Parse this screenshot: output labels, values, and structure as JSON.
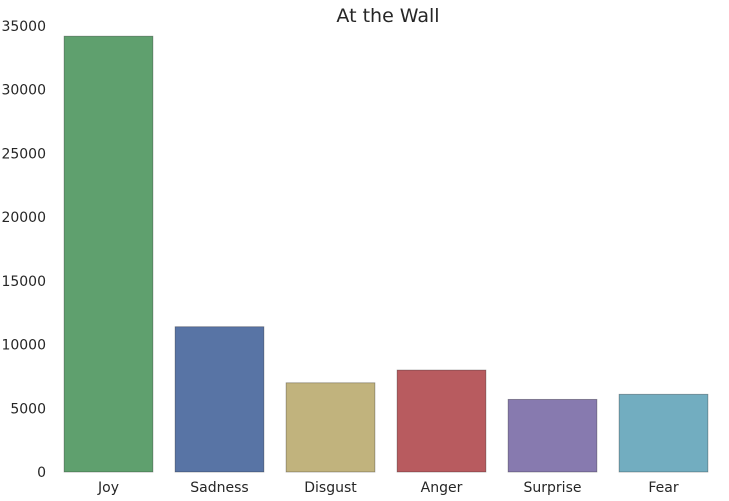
{
  "chart_data": {
    "type": "bar",
    "title": "At the Wall",
    "xlabel": "",
    "ylabel": "",
    "categories": [
      "Joy",
      "Sadness",
      "Disgust",
      "Anger",
      "Surprise",
      "Fear"
    ],
    "values": [
      34200,
      11400,
      7000,
      8000,
      5700,
      6100
    ],
    "colors": [
      "#5fa06e",
      "#5874a5",
      "#c1b37d",
      "#b85b5f",
      "#877aaf",
      "#72adc0"
    ],
    "ylim": [
      0,
      35000
    ],
    "yticks": [
      "0",
      "5000",
      "10000",
      "15000",
      "20000",
      "25000",
      "30000",
      "35000"
    ],
    "grid": false,
    "legend": "none"
  }
}
